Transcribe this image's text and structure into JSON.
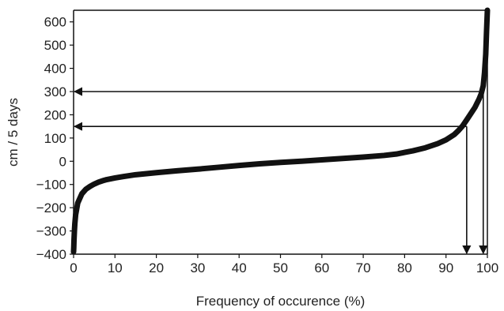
{
  "chart_data": {
    "type": "line",
    "title": "",
    "xlabel": "Frequency of occurence (%)",
    "ylabel": "cm / 5 days",
    "xlim": [
      0,
      100
    ],
    "ylim": [
      -400,
      650
    ],
    "xticks": [
      0,
      10,
      20,
      30,
      40,
      50,
      60,
      70,
      80,
      90,
      100
    ],
    "xtick_labels": [
      "0",
      "10",
      "20",
      "30",
      "40",
      "50",
      "60",
      "70",
      "80",
      "90",
      "100"
    ],
    "yticks": [
      -400,
      -300,
      -200,
      -100,
      0,
      100,
      200,
      300,
      400,
      500,
      600
    ],
    "ytick_labels": [
      "−400",
      "−300",
      "−200",
      "−100",
      "0",
      "100",
      "200",
      "300",
      "400",
      "500",
      "600"
    ],
    "grid": false,
    "series": [
      {
        "color": "#111111",
        "x": [
          0,
          0.05,
          0.1,
          0.2,
          0.3,
          0.5,
          0.7,
          1,
          1.5,
          2,
          3,
          4,
          5,
          6,
          7,
          8,
          10,
          12,
          15,
          20,
          25,
          30,
          35,
          40,
          45,
          50,
          55,
          60,
          65,
          70,
          75,
          78,
          80,
          82,
          85,
          88,
          90,
          92,
          93,
          94,
          95,
          96,
          97,
          97.5,
          98,
          98.5,
          99,
          99.3,
          99.6,
          99.8,
          100
        ],
        "y": [
          -390,
          -370,
          -340,
          -300,
          -270,
          -230,
          -210,
          -180,
          -160,
          -140,
          -120,
          -108,
          -98,
          -90,
          -84,
          -79,
          -72,
          -66,
          -58,
          -49,
          -41,
          -34,
          -26,
          -18,
          -11,
          -5,
          0,
          6,
          12,
          18,
          25,
          31,
          38,
          45,
          58,
          76,
          92,
          115,
          132,
          152,
          178,
          205,
          232,
          250,
          268,
          290,
          325,
          380,
          460,
          560,
          650
        ]
      }
    ],
    "annotations": [
      {
        "type": "horizontal-arrow",
        "y": 300,
        "from_x": 99,
        "to_x": 0
      },
      {
        "type": "horizontal-arrow",
        "y": 150,
        "from_x": 95,
        "to_x": 0
      },
      {
        "type": "vertical-arrow",
        "x": 95,
        "from_y": 150,
        "to_y": -400
      },
      {
        "type": "vertical-arrow",
        "x": 99,
        "from_y": 300,
        "to_y": -400
      }
    ]
  }
}
